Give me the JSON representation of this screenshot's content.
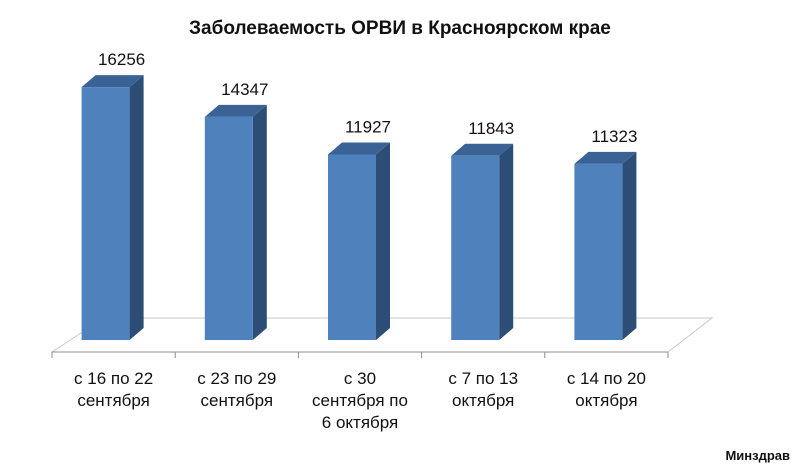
{
  "chart_data": {
    "type": "bar",
    "title": "Заболеваемость ОРВИ в Красноярском крае",
    "categories": [
      [
        "с 16 по 22",
        "сентября"
      ],
      [
        "с 23 по 29",
        "сентября"
      ],
      [
        "с 30",
        "сентября по",
        "6 октября"
      ],
      [
        "с 7 по 13",
        "октября"
      ],
      [
        "с 14 по 20",
        "октября"
      ]
    ],
    "values": [
      16256,
      14347,
      11927,
      11843,
      11323
    ],
    "ylim": [
      0,
      18000
    ],
    "grid": false,
    "bar_color": "#4f81bd",
    "bar_side_color": "#2c4d75",
    "bar_top_color": "#3b6294",
    "style": "3d-column"
  },
  "source": "Минздрав"
}
